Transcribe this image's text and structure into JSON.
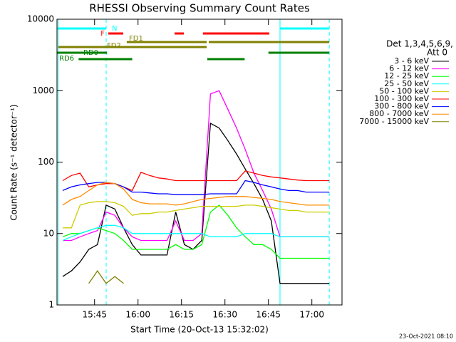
{
  "chart_data": {
    "type": "line",
    "title": "RHESSI Observing Summary Count Rates",
    "x_label": "Start Time (20-Oct-13 15:32:02)",
    "y_label": "Count Rate (s⁻¹ detector⁻¹)",
    "log_y": true,
    "xlim": [
      932.03,
      1030.4
    ],
    "ylim": [
      1,
      10000
    ],
    "xticks": [
      {
        "value": 945,
        "label": "15:45"
      },
      {
        "value": 960,
        "label": "16:00"
      },
      {
        "value": 975,
        "label": "16:15"
      },
      {
        "value": 990,
        "label": "16:30"
      },
      {
        "value": 1005,
        "label": "16:45"
      },
      {
        "value": 1020,
        "label": "17:00"
      }
    ],
    "yticks": [
      1,
      10,
      100,
      1000,
      10000
    ],
    "legend_title": [
      "Det 1,3,4,5,6,9,",
      "Att 0"
    ],
    "footer": "23-Oct-2021 08:10",
    "x": [
      934,
      937,
      940,
      943,
      946,
      949,
      952,
      955,
      958,
      961,
      964,
      967,
      970,
      973,
      976,
      979,
      982,
      985,
      988,
      991,
      994,
      997,
      1000,
      1003,
      1006,
      1009,
      1012,
      1015,
      1018,
      1021,
      1024,
      1026
    ],
    "series": [
      {
        "name": "3 - 6 keV",
        "color": "#000000",
        "values": [
          2.5,
          3,
          4,
          6,
          7,
          25,
          22,
          12,
          7,
          5,
          5,
          5,
          5,
          20,
          7,
          6,
          8,
          350,
          300,
          200,
          130,
          80,
          50,
          30,
          15,
          2,
          2,
          2,
          2,
          2,
          2,
          2
        ]
      },
      {
        "name": "6 - 12 keV",
        "color": "#ff00ff",
        "values": [
          8,
          8,
          9,
          10,
          11,
          20,
          18,
          12,
          9,
          8,
          8,
          8,
          8,
          15,
          8,
          8,
          10,
          900,
          1000,
          550,
          300,
          150,
          70,
          40,
          22,
          9,
          9,
          9,
          9,
          9,
          9,
          9
        ]
      },
      {
        "name": "12 - 25 keV",
        "color": "#00ff00",
        "values": [
          9,
          10,
          10,
          11,
          12,
          11,
          10,
          8,
          6,
          6,
          6,
          6,
          6,
          7,
          6,
          6,
          7,
          20,
          25,
          18,
          12,
          9,
          7,
          7,
          6,
          4.5,
          4.5,
          4.5,
          4.5,
          4.5,
          4.5,
          4.5
        ]
      },
      {
        "name": "25 - 50 keV",
        "color": "#00ffff",
        "values": [
          8,
          9,
          10,
          11,
          12,
          13,
          13,
          12,
          10,
          10,
          10,
          10,
          10,
          10,
          10,
          10,
          10,
          9,
          9,
          9,
          9,
          10,
          10,
          10,
          10,
          9,
          9,
          9,
          9,
          9,
          9,
          9
        ]
      },
      {
        "name": "50 - 100 keV",
        "color": "#cccc00",
        "values": [
          12,
          12,
          25,
          27,
          28,
          28,
          27,
          24,
          18,
          19,
          19,
          20,
          20,
          21,
          22,
          23,
          24,
          24,
          24,
          24,
          24,
          25,
          25,
          24,
          23,
          22,
          21,
          21,
          20,
          20,
          20,
          20
        ]
      },
      {
        "name": "100 - 300 keV",
        "color": "#ff0000",
        "values": [
          55,
          65,
          70,
          45,
          48,
          50,
          50,
          45,
          40,
          72,
          65,
          60,
          58,
          55,
          55,
          55,
          55,
          55,
          55,
          55,
          55,
          75,
          70,
          65,
          62,
          60,
          58,
          56,
          55,
          55,
          55,
          55
        ]
      },
      {
        "name": "300 - 800 keV",
        "color": "#0000ff",
        "values": [
          40,
          45,
          48,
          50,
          52,
          52,
          50,
          45,
          38,
          38,
          37,
          36,
          36,
          35,
          35,
          35,
          35,
          36,
          36,
          36,
          36,
          55,
          52,
          48,
          45,
          42,
          40,
          40,
          38,
          38,
          38,
          38
        ]
      },
      {
        "name": "800 - 7000 keV",
        "color": "#ff8c00",
        "values": [
          25,
          30,
          33,
          40,
          48,
          52,
          50,
          42,
          30,
          27,
          26,
          26,
          26,
          25,
          26,
          28,
          30,
          31,
          32,
          33,
          33,
          33,
          32,
          31,
          30,
          28,
          27,
          26,
          25,
          25,
          25,
          25
        ]
      },
      {
        "name": "7000 - 15000 keV",
        "color": "#808000",
        "values": [
          null,
          null,
          null,
          2,
          3,
          2,
          2.5,
          2,
          null,
          null,
          null,
          null,
          null,
          null,
          null,
          null,
          null,
          null,
          null,
          null,
          null,
          null,
          null,
          null,
          null,
          null,
          null,
          null,
          null,
          null,
          null,
          null
        ]
      }
    ],
    "markers": [
      {
        "x": 932.4,
        "color": "#00ffff",
        "dashed": false
      },
      {
        "x": 949.0,
        "color": "#00ffff",
        "dashed": true
      },
      {
        "x": 1009.0,
        "color": "#00ffff",
        "dashed": false
      },
      {
        "x": 1026.0,
        "color": "#00ffff",
        "dashed": true
      }
    ],
    "flags": [
      {
        "label": "N",
        "color": "#00ffff",
        "segments": [
          [
            932.03,
            949.0
          ],
          [
            1009.0,
            1026.0
          ]
        ]
      },
      {
        "label": "F",
        "color": "#ff0000",
        "segments": [
          [
            949.7,
            954.9
          ],
          [
            972.6,
            975.8
          ],
          [
            982.4,
            1005.3
          ]
        ]
      },
      {
        "label": "FD1",
        "color": "#808000",
        "segments": [
          [
            956.1,
            983.7
          ],
          [
            984.4,
            1026.0
          ]
        ]
      },
      {
        "label": "FD2",
        "color": "#808000",
        "segments": [
          [
            932.5,
            983.7
          ]
        ]
      },
      {
        "label": "RD0",
        "color": "#008000",
        "segments": [
          [
            932.03,
            949.3
          ],
          [
            1005.0,
            1026.0
          ]
        ]
      },
      {
        "label": "RD6",
        "color": "#008000",
        "segments": [
          [
            939.5,
            958.0
          ],
          [
            983.9,
            996.8
          ]
        ]
      }
    ]
  }
}
